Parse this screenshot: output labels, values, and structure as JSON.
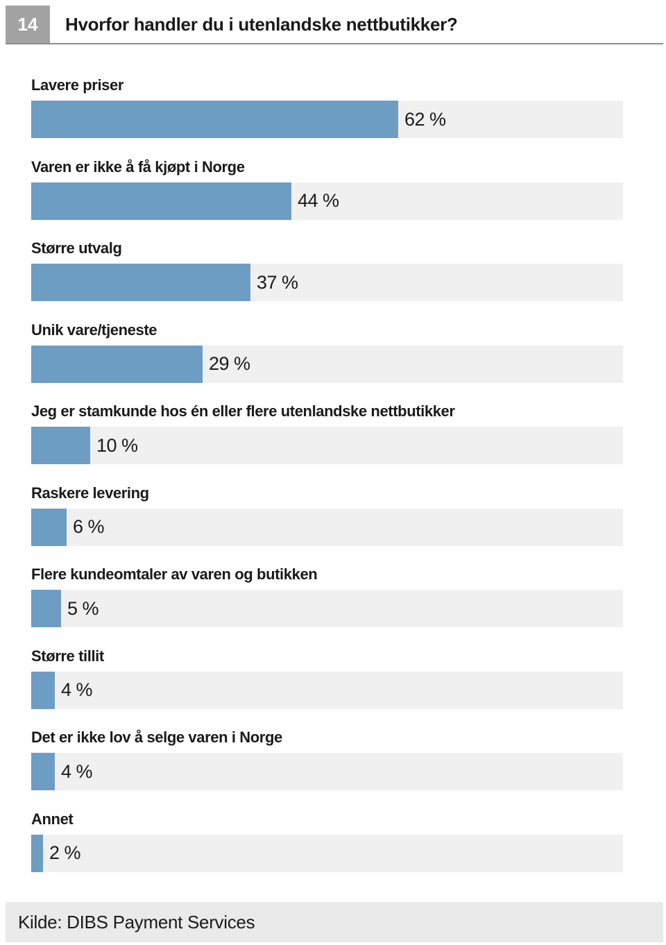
{
  "header": {
    "number": "14",
    "title": "Hvorfor handler du i utenlandske nettbutikker?"
  },
  "chart_data": {
    "type": "bar",
    "orientation": "horizontal",
    "title": "Hvorfor handler du i utenlandske nettbutikker?",
    "xlim": [
      0,
      100
    ],
    "unit": "%",
    "categories": [
      "Lavere priser",
      "Varen er ikke å få kjøpt i Norge",
      "Større utvalg",
      "Unik vare/tjeneste",
      "Jeg er stamkunde hos én eller flere utenlandske nettbutikker",
      "Raskere levering",
      "Flere kundeomtaler av varen og butikken",
      "Større tillit",
      "Det er ikke lov å selge varen i Norge",
      "Annet"
    ],
    "values": [
      62,
      44,
      37,
      29,
      10,
      6,
      5,
      4,
      4,
      2
    ],
    "value_labels": [
      "62 %",
      "44 %",
      "37 %",
      "29 %",
      "10 %",
      "6 %",
      "5 %",
      "4 %",
      "4 %",
      "2 %"
    ],
    "bar_color": "#6d9dc3",
    "track_color": "#f0f0f0"
  },
  "footer": {
    "source": "Kilde: DIBS Payment Services"
  }
}
